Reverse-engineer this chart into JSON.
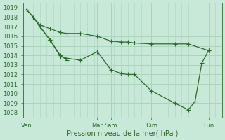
{
  "bg_color": "#c8e8d8",
  "grid_color": "#aad4bc",
  "line_color": "#2d6a2d",
  "marker_color": "#2d6a2d",
  "xlabel": "Pression niveau de la mer( hPa )",
  "ylim": [
    1007.5,
    1019.5
  ],
  "yticks": [
    1008,
    1009,
    1010,
    1011,
    1012,
    1013,
    1014,
    1015,
    1016,
    1017,
    1018,
    1019
  ],
  "day_positions": [
    0,
    10.5,
    12.5,
    18.5,
    27
  ],
  "day_labels": [
    "Ven",
    "Mar",
    "Sam",
    "Dim",
    "Lun"
  ],
  "xmin": -0.5,
  "xmax": 29,
  "series1": {
    "x": [
      0,
      1,
      2,
      3.5,
      5,
      6,
      8,
      10.5,
      12.5,
      14,
      15,
      16,
      18.5,
      22,
      24,
      27
    ],
    "y": [
      1018.8,
      1018.0,
      1017.2,
      1016.8,
      1016.4,
      1016.3,
      1016.3,
      1016.0,
      1015.5,
      1015.4,
      1015.4,
      1015.3,
      1015.2,
      1015.2,
      1015.2,
      1014.5
    ]
  },
  "series2": {
    "x": [
      0,
      1,
      2,
      3.5,
      5,
      6,
      8,
      10.5,
      12.5,
      14,
      15,
      16,
      18.5,
      22,
      24,
      25,
      26,
      27
    ],
    "y": [
      1018.8,
      1018.0,
      1017.0,
      1015.6,
      1013.9,
      1013.7,
      1013.5,
      1014.4,
      1012.5,
      1012.1,
      1012.0,
      1012.0,
      1010.3,
      1009.0,
      1008.3,
      1009.2,
      1013.2,
      1014.5
    ]
  },
  "series3": {
    "x": [
      2,
      3.5,
      5,
      6
    ],
    "y": [
      1017.0,
      1015.6,
      1014.0,
      1013.5
    ]
  }
}
